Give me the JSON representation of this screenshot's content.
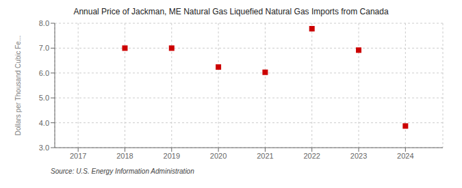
{
  "chart_data": {
    "type": "scatter",
    "title": "Annual Price of Jackman, ME Natural Gas Liquefied Natural Gas Imports from Canada",
    "ylabel": "Dollars per Thousand Cubic Fe...",
    "annotation": "Source: U.S. Energy Information Administration",
    "x": [
      2018,
      2019,
      2020,
      2021,
      2022,
      2023,
      2024
    ],
    "values": [
      7.0,
      7.0,
      6.24,
      6.03,
      7.78,
      6.92,
      3.87
    ],
    "color": "#cc0000",
    "marker": "square",
    "xlim": [
      2016.5,
      2024.8
    ],
    "ylim": [
      3.0,
      8.0
    ],
    "xticks": [
      2017,
      2018,
      2019,
      2020,
      2021,
      2022,
      2023,
      2024
    ],
    "yticks": [
      {
        "value": 3.0,
        "label": "3.0"
      },
      {
        "value": 4.0,
        "label": "4.0"
      },
      {
        "value": 5.0,
        "label": "5.0"
      },
      {
        "value": 6.0,
        "label": "6.0"
      },
      {
        "value": 7.0,
        "label": "7.0"
      },
      {
        "value": 8.0,
        "label": "8.0"
      }
    ],
    "grid": true
  }
}
